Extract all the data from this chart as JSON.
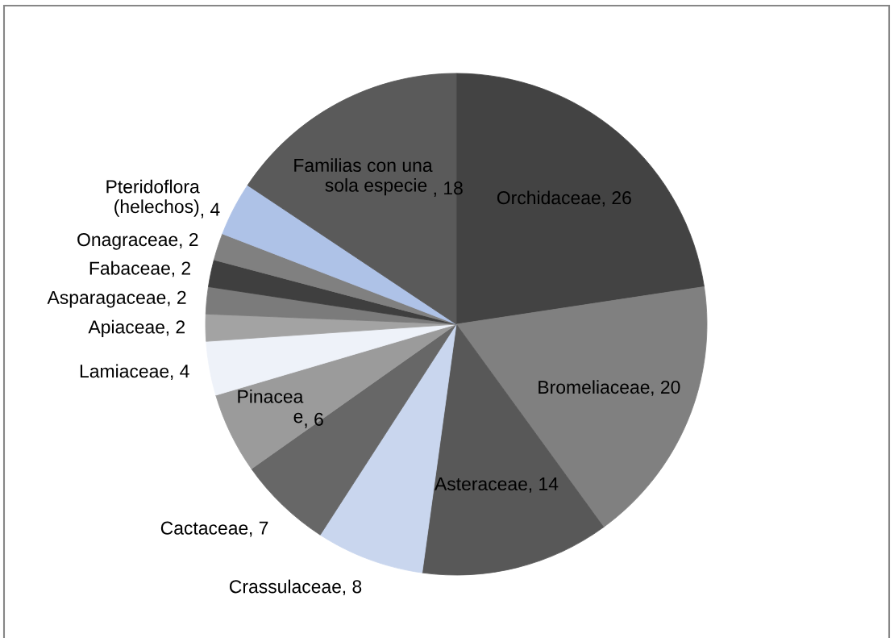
{
  "chart_data": {
    "type": "pie",
    "categories": [
      "Orchidaceae",
      "Bromeliaceae",
      "Asteraceae",
      "Crassulaceae",
      "Cactaceae",
      "Pinacea\ne",
      "Lamiaceae",
      "Apiaceae",
      "Asparagaceae",
      "Fabaceae",
      "Onagraceae",
      "Pteridoflora\n(helechos)",
      "Familias con una\nsola especie "
    ],
    "values": [
      26,
      20,
      14,
      8,
      7,
      6,
      4,
      2,
      2,
      2,
      2,
      4,
      18
    ],
    "value_labels": [
      ", 26",
      ", 20",
      ", 14",
      ", 8",
      ", 7",
      ", 6",
      ", 4",
      ", 2",
      ", 2",
      ", 2",
      ", 2",
      ", 4",
      ", 18"
    ],
    "colors": [
      "#434343",
      "#808080",
      "#585858",
      "#c9d6ee",
      "#676767",
      "#9b9b9b",
      "#eef2f9",
      "#a3a3a3",
      "#7b7b7b",
      "#3f3f3f",
      "#808080",
      "#aec2e7",
      "#5a5a5a"
    ]
  }
}
